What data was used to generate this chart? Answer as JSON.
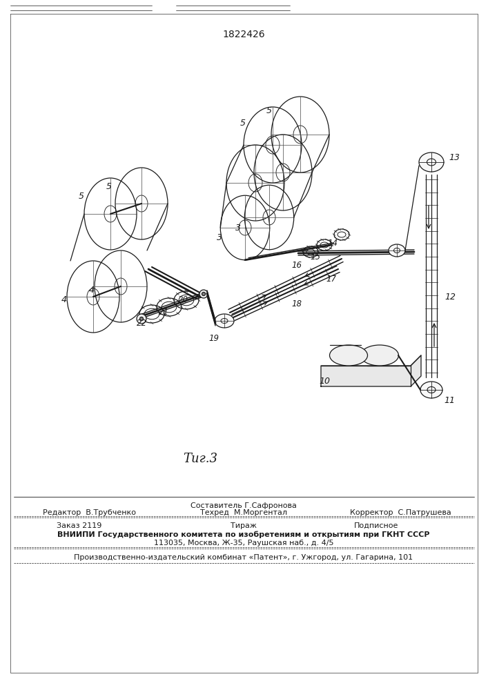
{
  "patent_number": "1822426",
  "figure_label": "Τиг.3",
  "bg_color": "#ffffff",
  "line_color": "#1a1a1a",
  "bottom_texts": {
    "sostavitel": "Составитель Г.Сафронова",
    "redaktor": "Редактор  В.Трубченко",
    "tehred": "Техред  М.Моргентал",
    "korrektor": "Корректор  С.Патрушева",
    "zakaz": "Заказ 2119",
    "tirazh": "Тираж",
    "podpisnoe": "Подписное",
    "vniip1": "ВНИИПИ Государственного комитета по изобретениям и открытиям при ГКНТ СССР",
    "vniip2": "113035, Москва, Ж-35, Раушская наб., д. 4/5",
    "kombinat": "Производственно-издательский комбинат «Патент», г. Ужгород, ул. Гагарина, 101"
  }
}
